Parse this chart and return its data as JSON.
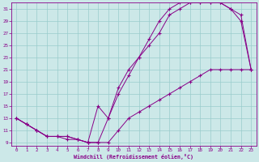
{
  "xlabel": "Windchill (Refroidissement éolien,°C)",
  "bg_color": "#cce8e8",
  "grid_color": "#99cccc",
  "line_color": "#880088",
  "xlim": [
    -0.5,
    23.5
  ],
  "ylim": [
    8.5,
    32
  ],
  "xticks": [
    0,
    1,
    2,
    3,
    4,
    5,
    6,
    7,
    8,
    9,
    10,
    11,
    12,
    13,
    14,
    15,
    16,
    17,
    18,
    19,
    20,
    21,
    22,
    23
  ],
  "yticks": [
    9,
    11,
    13,
    15,
    17,
    19,
    21,
    23,
    25,
    27,
    29,
    31
  ],
  "curve1_x": [
    0,
    1,
    2,
    3,
    4,
    5,
    6,
    7,
    8,
    9,
    10,
    11,
    12,
    13,
    14,
    15,
    16,
    17,
    18,
    19,
    20,
    21,
    22,
    23
  ],
  "curve1_y": [
    13,
    12,
    11,
    10,
    10,
    10,
    9.5,
    9,
    9,
    13,
    17,
    20,
    23,
    25,
    27,
    30,
    31,
    32,
    32,
    32,
    32,
    31,
    30,
    21
  ],
  "curve2_x": [
    0,
    1,
    2,
    3,
    4,
    5,
    6,
    7,
    8,
    9,
    10,
    11,
    12,
    13,
    14,
    15,
    16,
    17,
    18,
    19,
    20,
    21,
    22,
    23
  ],
  "curve2_y": [
    13,
    12,
    11,
    10,
    10,
    10,
    9.5,
    9,
    15,
    13,
    18,
    21,
    23,
    26,
    29,
    31,
    32,
    32,
    32,
    32,
    32,
    31,
    29,
    21
  ],
  "curve3_x": [
    0,
    1,
    2,
    3,
    4,
    5,
    6,
    7,
    8,
    9,
    10,
    11,
    12,
    13,
    14,
    15,
    16,
    17,
    18,
    19,
    20,
    21,
    22,
    23
  ],
  "curve3_y": [
    13,
    12,
    11,
    10,
    10,
    9.5,
    9.5,
    9,
    9,
    9,
    11,
    13,
    14,
    15,
    16,
    17,
    18,
    19,
    20,
    21,
    21,
    21,
    21,
    21
  ]
}
